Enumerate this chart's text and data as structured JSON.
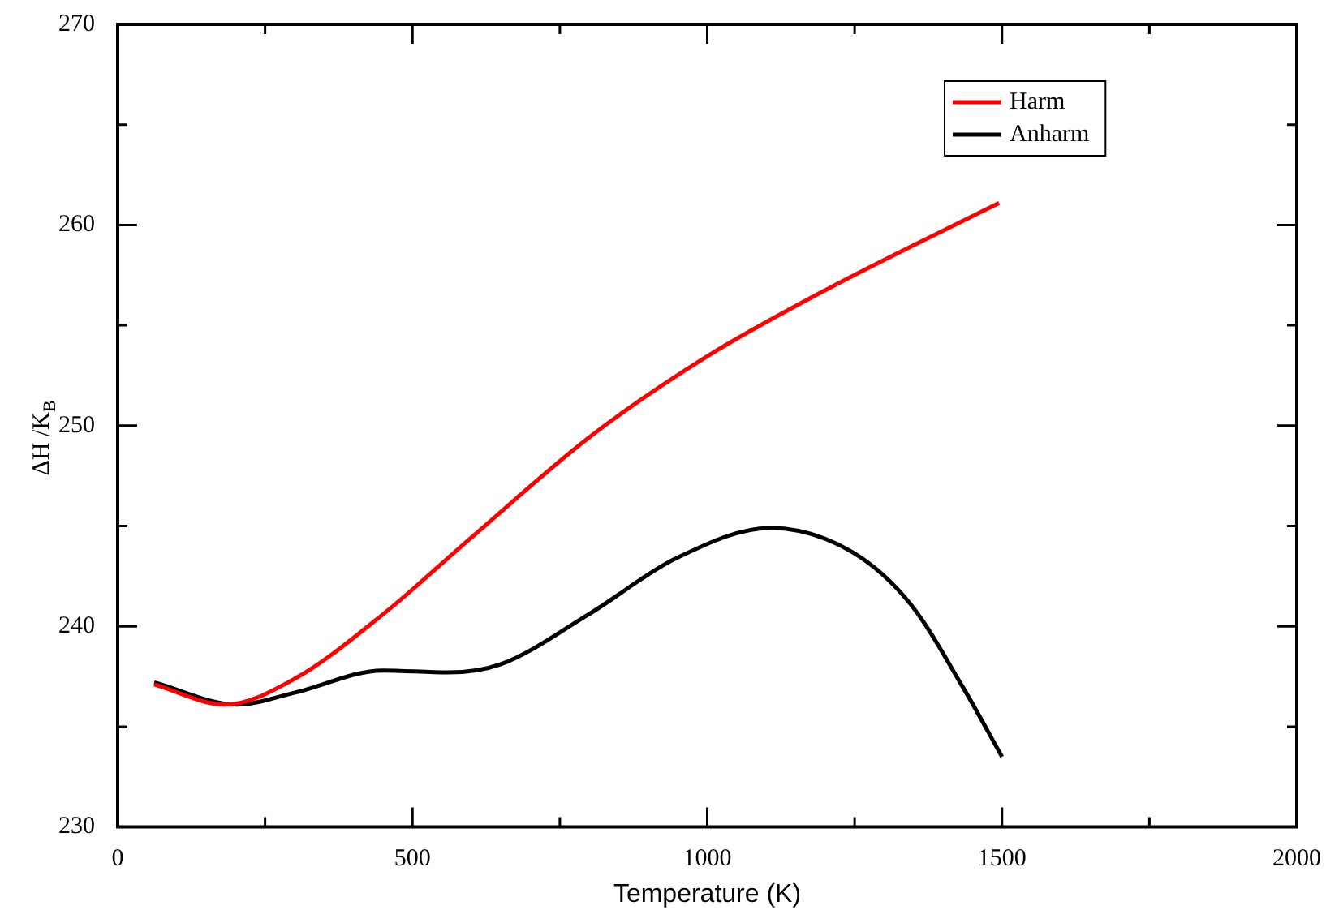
{
  "chart_data": {
    "type": "line",
    "xlabel": "Temperature (K)",
    "ylabel": "ΔH /K$_{B}$",
    "xlim": [
      0,
      2000
    ],
    "ylim": [
      230,
      270
    ],
    "xticks": [
      0,
      {
        "value": 250,
        "label": null
      },
      500,
      {
        "value": 750,
        "label": null
      },
      1000,
      {
        "value": 1250,
        "label": null
      },
      1500,
      {
        "value": 1750,
        "label": null
      },
      2000
    ],
    "yticks": [
      230,
      {
        "value": 235,
        "label": null
      },
      240,
      {
        "value": 245,
        "label": null
      },
      250,
      {
        "value": 255,
        "label": null
      },
      260,
      {
        "value": 265,
        "label": null
      },
      270
    ],
    "grid": false,
    "legend": "top right",
    "line_style": "solid",
    "marker": "none",
    "series": [
      {
        "name": "Harm",
        "color": "#ff0000",
        "x": [
          62,
          182,
          301,
          450,
          599,
          799,
          997,
          1197,
          1495
        ],
        "values": [
          237.1,
          236.1,
          237.4,
          240.6,
          244.4,
          249.4,
          253.4,
          256.7,
          261.1
        ]
      },
      {
        "name": "Anharm",
        "color": "#000000",
        "x": [
          62,
          202,
          301,
          450,
          560,
          649,
          799,
          948,
          1107,
          1246,
          1345,
          1435,
          1500
        ],
        "values": [
          237.2,
          236.1,
          236.7,
          237.8,
          237.7,
          238.1,
          240.6,
          243.4,
          244.9,
          243.7,
          241.1,
          236.9,
          233.5
        ]
      }
    ]
  }
}
